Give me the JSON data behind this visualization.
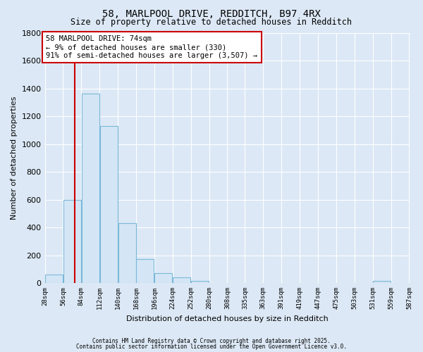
{
  "title1": "58, MARLPOOL DRIVE, REDDITCH, B97 4RX",
  "title2": "Size of property relative to detached houses in Redditch",
  "xlabel": "Distribution of detached houses by size in Redditch",
  "ylabel": "Number of detached properties",
  "bin_edges": [
    28,
    56,
    84,
    112,
    140,
    168,
    196,
    224,
    252,
    280,
    308,
    335,
    363,
    391,
    419,
    447,
    475,
    503,
    531,
    559,
    587
  ],
  "bar_heights": [
    60,
    600,
    1360,
    1130,
    430,
    170,
    70,
    40,
    15,
    0,
    0,
    0,
    0,
    0,
    0,
    0,
    0,
    0,
    15,
    0
  ],
  "bar_color": "#d4e6f5",
  "bar_edge_color": "#7ab8d9",
  "property_size": 74,
  "red_line_color": "#cc0000",
  "annotation_text": "58 MARLPOOL DRIVE: 74sqm\n← 9% of detached houses are smaller (330)\n91% of semi-detached houses are larger (3,507) →",
  "annotation_box_color": "#ffffff",
  "annotation_box_edge": "#cc0000",
  "ylim": [
    0,
    1800
  ],
  "yticks": [
    0,
    200,
    400,
    600,
    800,
    1000,
    1200,
    1400,
    1600,
    1800
  ],
  "bg_color": "#dce8f5",
  "plot_bg_color": "#dce8f5",
  "grid_color": "#ffffff",
  "footer1": "Contains HM Land Registry data © Crown copyright and database right 2025.",
  "footer2": "Contains public sector information licensed under the Open Government Licence v3.0."
}
